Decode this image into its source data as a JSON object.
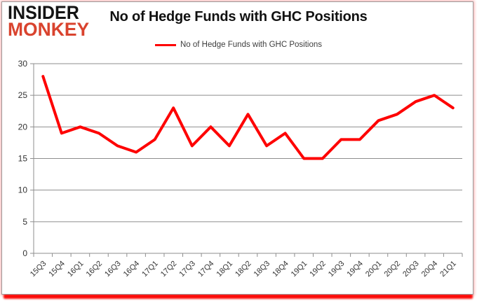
{
  "logo": {
    "line1": "INSIDER",
    "line2": "MONKEY"
  },
  "header": {
    "title": "No of Hedge Funds with GHC Positions"
  },
  "legend": {
    "label": "No of Hedge Funds with GHC Positions",
    "line_color": "#fe0000"
  },
  "chart_data": {
    "type": "line",
    "title": "No of Hedge Funds with GHC Positions",
    "categories": [
      "15Q3",
      "15Q4",
      "16Q1",
      "16Q2",
      "16Q3",
      "16Q4",
      "17Q1",
      "17Q2",
      "17Q3",
      "17Q4",
      "18Q1",
      "18Q2",
      "18Q3",
      "18Q4",
      "19Q1",
      "19Q2",
      "19Q3",
      "19Q4",
      "20Q1",
      "20Q2",
      "20Q3",
      "20Q4",
      "21Q1"
    ],
    "series": [
      {
        "name": "No of Hedge Funds with GHC Positions",
        "color": "#fe0000",
        "values": [
          28,
          19,
          20,
          19,
          17,
          16,
          18,
          23,
          17,
          20,
          17,
          22,
          17,
          19,
          15,
          15,
          18,
          18,
          21,
          22,
          24,
          25,
          23
        ]
      }
    ],
    "xlabel": "",
    "ylabel": "",
    "ylim": [
      0,
      30
    ],
    "yticks": [
      0,
      5,
      10,
      15,
      20,
      25,
      30
    ],
    "grid": true,
    "gridline_color": "#8e8e8e",
    "axis_color": "#8e8e8e",
    "legend_position": "top"
  }
}
